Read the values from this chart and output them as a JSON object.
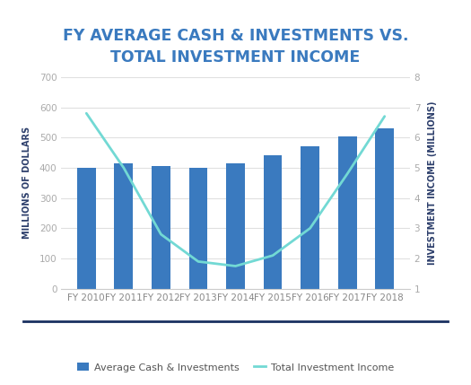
{
  "categories": [
    "FY 2010",
    "FY 2011",
    "FY 2012",
    "FY 2013",
    "FY 2014",
    "FY 2015",
    "FY 2016",
    "FY 2017",
    "FY 2018"
  ],
  "bar_values": [
    400,
    415,
    405,
    400,
    415,
    440,
    470,
    503,
    530
  ],
  "line_values": [
    6.8,
    5.0,
    2.8,
    1.9,
    1.75,
    2.1,
    3.0,
    4.8,
    6.7
  ],
  "bar_color": "#3a7abf",
  "line_color": "#72d9d4",
  "title_line1": "FY AVERAGE CASH & INVESTMENTS VS.",
  "title_line2": "TOTAL INVESTMENT INCOME",
  "title_color": "#3a7abf",
  "ylabel_left": "MILLIONS OF DOLLARS",
  "ylabel_right": "INVESTMENT INCOME (MILLIONS)",
  "ylim_left": [
    0,
    700
  ],
  "ylim_right": [
    1,
    8
  ],
  "yticks_left": [
    0,
    100,
    200,
    300,
    400,
    500,
    600,
    700
  ],
  "yticks_right": [
    1,
    2,
    3,
    4,
    5,
    6,
    7,
    8
  ],
  "legend_bar_label": "Average Cash & Investments",
  "legend_line_label": "Total Investment Income",
  "background_color": "#ffffff",
  "axis_color": "#cccccc",
  "tick_color": "#aaaaaa",
  "grid_color": "#e0e0e0",
  "separator_color": "#1a3060",
  "title_fontsize": 12.5,
  "axis_label_fontsize": 7,
  "tick_fontsize": 7.5
}
